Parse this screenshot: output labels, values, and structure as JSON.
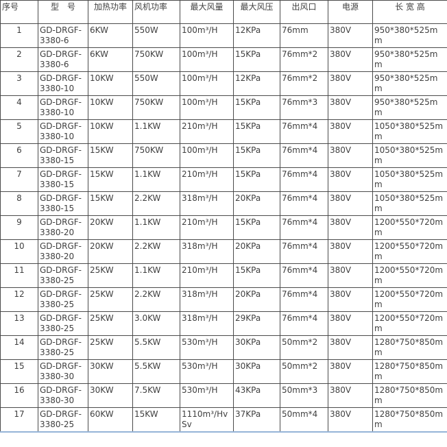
{
  "table": {
    "name": "heater-spec-table",
    "columns": [
      {
        "key": "index",
        "label": "序号"
      },
      {
        "key": "model",
        "label": "型　号"
      },
      {
        "key": "heat-power",
        "label": "加热功率"
      },
      {
        "key": "fan-power",
        "label": "风机功率"
      },
      {
        "key": "max-airflow",
        "label": "最大风量"
      },
      {
        "key": "max-pressure",
        "label": "最大风压"
      },
      {
        "key": "air-outlet",
        "label": "出风口"
      },
      {
        "key": "power",
        "label": "电源"
      },
      {
        "key": "dimensions",
        "label": "长 宽 高"
      }
    ],
    "rows": [
      [
        "1",
        "GD-DRGF-3380-6",
        "6KW",
        "550W",
        "100m³/H",
        "12KPa",
        "76mm",
        "380V",
        "950*380*525mm"
      ],
      [
        "2",
        "GD-DRGF-3380-6",
        "6KW",
        "750KW",
        "100m³/H",
        "15KPa",
        "76mm*2",
        "380V",
        "950*380*525mm"
      ],
      [
        "3",
        "GD-DRGF-3380-10",
        "10KW",
        "550W",
        "100m³/H",
        "12KPa",
        "76mm*2",
        "380V",
        "950*380*525mm"
      ],
      [
        "4",
        "GD-DRGF-3380-10",
        "10KW",
        "750KW",
        "100m³/H",
        "15KPa",
        "76mm*3",
        "380V",
        "950*380*525mm"
      ],
      [
        "5",
        "GD-DRGF-3380-10",
        "10KW",
        "1.1KW",
        "210m³/H",
        "15KPa",
        "76mm*4",
        "380V",
        "1050*380*525mm"
      ],
      [
        "6",
        "GD-DRGF-3380-15",
        "15KW",
        "750KW",
        "100m³/H",
        "15KPa",
        "76mm*4",
        "380V",
        "1050*380*525mm"
      ],
      [
        "7",
        "GD-DRGF-3380-15",
        "15KW",
        "1.1KW",
        "210m³/H",
        "15KPa",
        "76mm*4",
        "380V",
        "1050*380*525mm"
      ],
      [
        "8",
        "GD-DRGF-3380-15",
        "15KW",
        "2.2KW",
        "318m³/H",
        "20KPa",
        "76mm*4",
        "380V",
        "1050*380*525mm"
      ],
      [
        "9",
        "GD-DRGF-3380-20",
        "20KW",
        "1.1KW",
        "210m³/H",
        "15KPa",
        "76mm*4",
        "380V",
        "1200*550*720mm"
      ],
      [
        "10",
        "GD-DRGF-3380-20",
        "20KW",
        "2.2KW",
        "318m³/H",
        "20KPa",
        "76mm*4",
        "380V",
        "1200*550*720mm"
      ],
      [
        "11",
        "GD-DRGF-3380-25",
        "25KW",
        "1.1KW",
        "210m³/H",
        "15KPa",
        "76mm*4",
        "380V",
        "1200*550*720mm"
      ],
      [
        "12",
        "GD-DRGF-3380-25",
        "25KW",
        "2.2KW",
        "318m³/H",
        "20KPa",
        "76mm*4",
        "380V",
        "1200*550*720mm"
      ],
      [
        "13",
        "GD-DRGF-3380-25",
        "25KW",
        "3.0KW",
        "318m³/H",
        "29KPa",
        "76mm*4",
        "380V",
        "1200*550*720mm"
      ],
      [
        "14",
        "GD-DRGF-3380-25",
        "25KW",
        "5.5KW",
        "530m³/H",
        "30KPa",
        "50mm*2",
        "380V",
        "1280*750*850mm"
      ],
      [
        "15",
        "GD-DRGF-3380-30",
        "30KW",
        "5.5KW",
        "530m³/H",
        "30KPa",
        "50mm*2",
        "380V",
        "1280*750*850mm"
      ],
      [
        "16",
        "GD-DRGF-3380-30",
        "30KW",
        "7.5KW",
        "530m³/H",
        "43KPa",
        "50mm*3",
        "380V",
        "1280*750*850mm"
      ],
      [
        "17",
        "GD-DRGF-3380-25",
        "60KW",
        "15KW",
        "1110m³/HvSv",
        "37KPa",
        "50mm*4",
        "380V",
        "1280*750*850mm"
      ]
    ]
  },
  "colors": {
    "grid_border": "#4a4a4a",
    "bottom_border": "#95b3d7",
    "text": "#3f3f3f",
    "background": "#ffffff"
  }
}
